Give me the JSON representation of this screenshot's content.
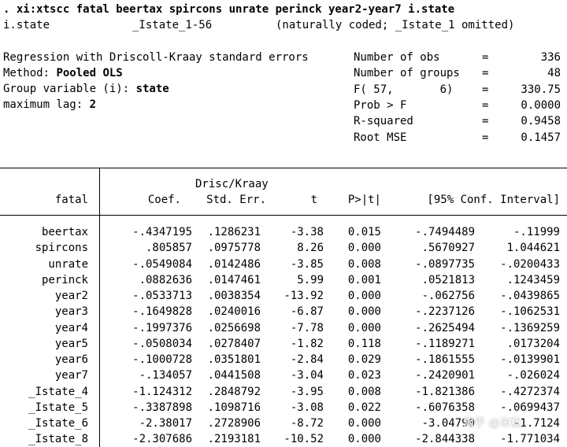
{
  "command": {
    "text": ". xi:xtscc fatal beertax spircons unrate perinck year2-year7 i.state"
  },
  "expand_note": {
    "var": "i.state",
    "range": "_Istate_1-56",
    "note": "(naturally coded; _Istate_1 omitted)"
  },
  "header_left": {
    "line1": "Regression with Driscoll-Kraay standard errors",
    "method_label": "Method: ",
    "method_value": "Pooled OLS",
    "group_label": "Group variable (i): ",
    "group_value": "state",
    "lag_label": "maximum lag: ",
    "lag_value": "2"
  },
  "stats": [
    {
      "label": "Number of obs",
      "eq": "=",
      "value": "336"
    },
    {
      "label": "Number of groups",
      "eq": "=",
      "value": "48"
    },
    {
      "label": "F( 57,       6)",
      "eq": "=",
      "value": "330.75"
    },
    {
      "label": "Prob > F",
      "eq": "=",
      "value": "0.0000"
    },
    {
      "label": "R-squared",
      "eq": "=",
      "value": "0.9458"
    },
    {
      "label": "Root MSE",
      "eq": "=",
      "value": "0.1457"
    }
  ],
  "table": {
    "header_top": "Drisc/Kraay",
    "depvar": "fatal",
    "columns": [
      "Coef.",
      "Std. Err.",
      "t",
      "P>|t|",
      "[95% Conf. Interval]"
    ],
    "rows": [
      {
        "name": "beertax",
        "coef": "-.4347195",
        "se": ".1286231",
        "t": "-3.38",
        "p": "0.015",
        "lo": "-.7494489",
        "hi": "-.11999"
      },
      {
        "name": "spircons",
        "coef": ".805857",
        "se": ".0975778",
        "t": "8.26",
        "p": "0.000",
        "lo": ".5670927",
        "hi": "1.044621"
      },
      {
        "name": "unrate",
        "coef": "-.0549084",
        "se": ".0142486",
        "t": "-3.85",
        "p": "0.008",
        "lo": "-.0897735",
        "hi": "-.0200433"
      },
      {
        "name": "perinck",
        "coef": ".0882636",
        "se": ".0147461",
        "t": "5.99",
        "p": "0.001",
        "lo": ".0521813",
        "hi": ".1243459"
      },
      {
        "name": "year2",
        "coef": "-.0533713",
        "se": ".0038354",
        "t": "-13.92",
        "p": "0.000",
        "lo": "-.062756",
        "hi": "-.0439865"
      },
      {
        "name": "year3",
        "coef": "-.1649828",
        "se": ".0240016",
        "t": "-6.87",
        "p": "0.000",
        "lo": "-.2237126",
        "hi": "-.1062531"
      },
      {
        "name": "year4",
        "coef": "-.1997376",
        "se": ".0256698",
        "t": "-7.78",
        "p": "0.000",
        "lo": "-.2625494",
        "hi": "-.1369259"
      },
      {
        "name": "year5",
        "coef": "-.0508034",
        "se": ".0278407",
        "t": "-1.82",
        "p": "0.118",
        "lo": "-.1189271",
        "hi": ".0173204"
      },
      {
        "name": "year6",
        "coef": "-.1000728",
        "se": ".0351801",
        "t": "-2.84",
        "p": "0.029",
        "lo": "-.1861555",
        "hi": "-.0139901"
      },
      {
        "name": "year7",
        "coef": "-.134057",
        "se": ".0441508",
        "t": "-3.04",
        "p": "0.023",
        "lo": "-.2420901",
        "hi": "-.026024"
      },
      {
        "name": "_Istate_4",
        "coef": "-1.124312",
        "se": ".2848792",
        "t": "-3.95",
        "p": "0.008",
        "lo": "-1.821386",
        "hi": "-.4272374"
      },
      {
        "name": "_Istate_5",
        "coef": "-.3387898",
        "se": ".1098716",
        "t": "-3.08",
        "p": "0.022",
        "lo": "-.6076358",
        "hi": "-.0699437"
      },
      {
        "name": "_Istate_6",
        "coef": "-2.38017",
        "se": ".2728906",
        "t": "-8.72",
        "p": "0.000",
        "lo": "-3.04790",
        "hi": "-1.7124"
      },
      {
        "name": "_Istate_8",
        "coef": "-2.307686",
        "se": ".2193181",
        "t": "-10.52",
        "p": "0.000",
        "lo": "-2.844338",
        "hi": "-1.771034"
      }
    ]
  },
  "watermark": {
    "text": "知乎 @米粒"
  }
}
